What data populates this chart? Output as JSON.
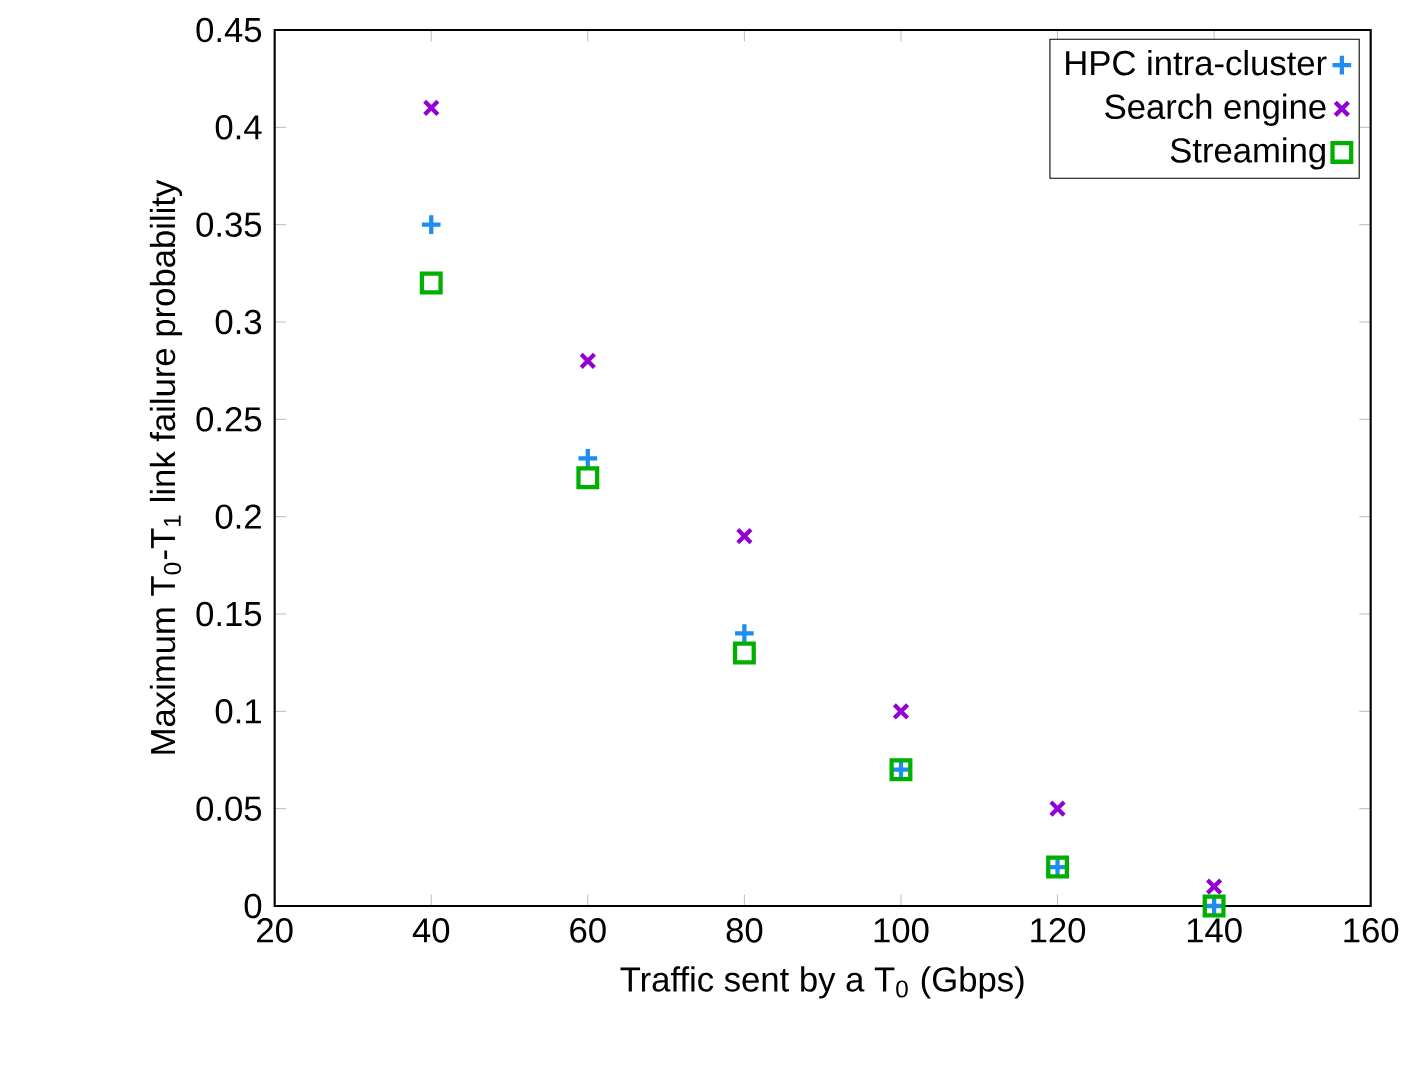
{
  "chart_data": {
    "type": "scatter",
    "xlabel": "Traffic sent by a T$_{0}$ (Gbps)",
    "ylabel": "Maximum T$_{0}$-T$_{1}$ link failure probability",
    "x": [
      40,
      60,
      80,
      100,
      120,
      140
    ],
    "series": [
      {
        "name": "HPC intra-cluster",
        "color": "#1e8cf0",
        "marker": "plus",
        "values": [
          0.35,
          0.23,
          0.14,
          0.07,
          0.02,
          0.0
        ]
      },
      {
        "name": "Search engine",
        "color": "#9400d3",
        "marker": "cross",
        "values": [
          0.41,
          0.28,
          0.19,
          0.1,
          0.05,
          0.01
        ]
      },
      {
        "name": "Streaming",
        "color": "#00b000",
        "marker": "square",
        "values": [
          0.32,
          0.22,
          0.13,
          0.07,
          0.02,
          0.0
        ]
      }
    ],
    "xlim": [
      20,
      160
    ],
    "ylim": [
      0,
      0.45
    ],
    "xticks": [
      20,
      40,
      60,
      80,
      100,
      120,
      140,
      160
    ],
    "yticks": [
      0,
      0.05,
      0.1,
      0.15,
      0.2,
      0.25,
      0.3,
      0.35,
      0.4,
      0.45
    ],
    "grid": false,
    "legend": "top right"
  }
}
